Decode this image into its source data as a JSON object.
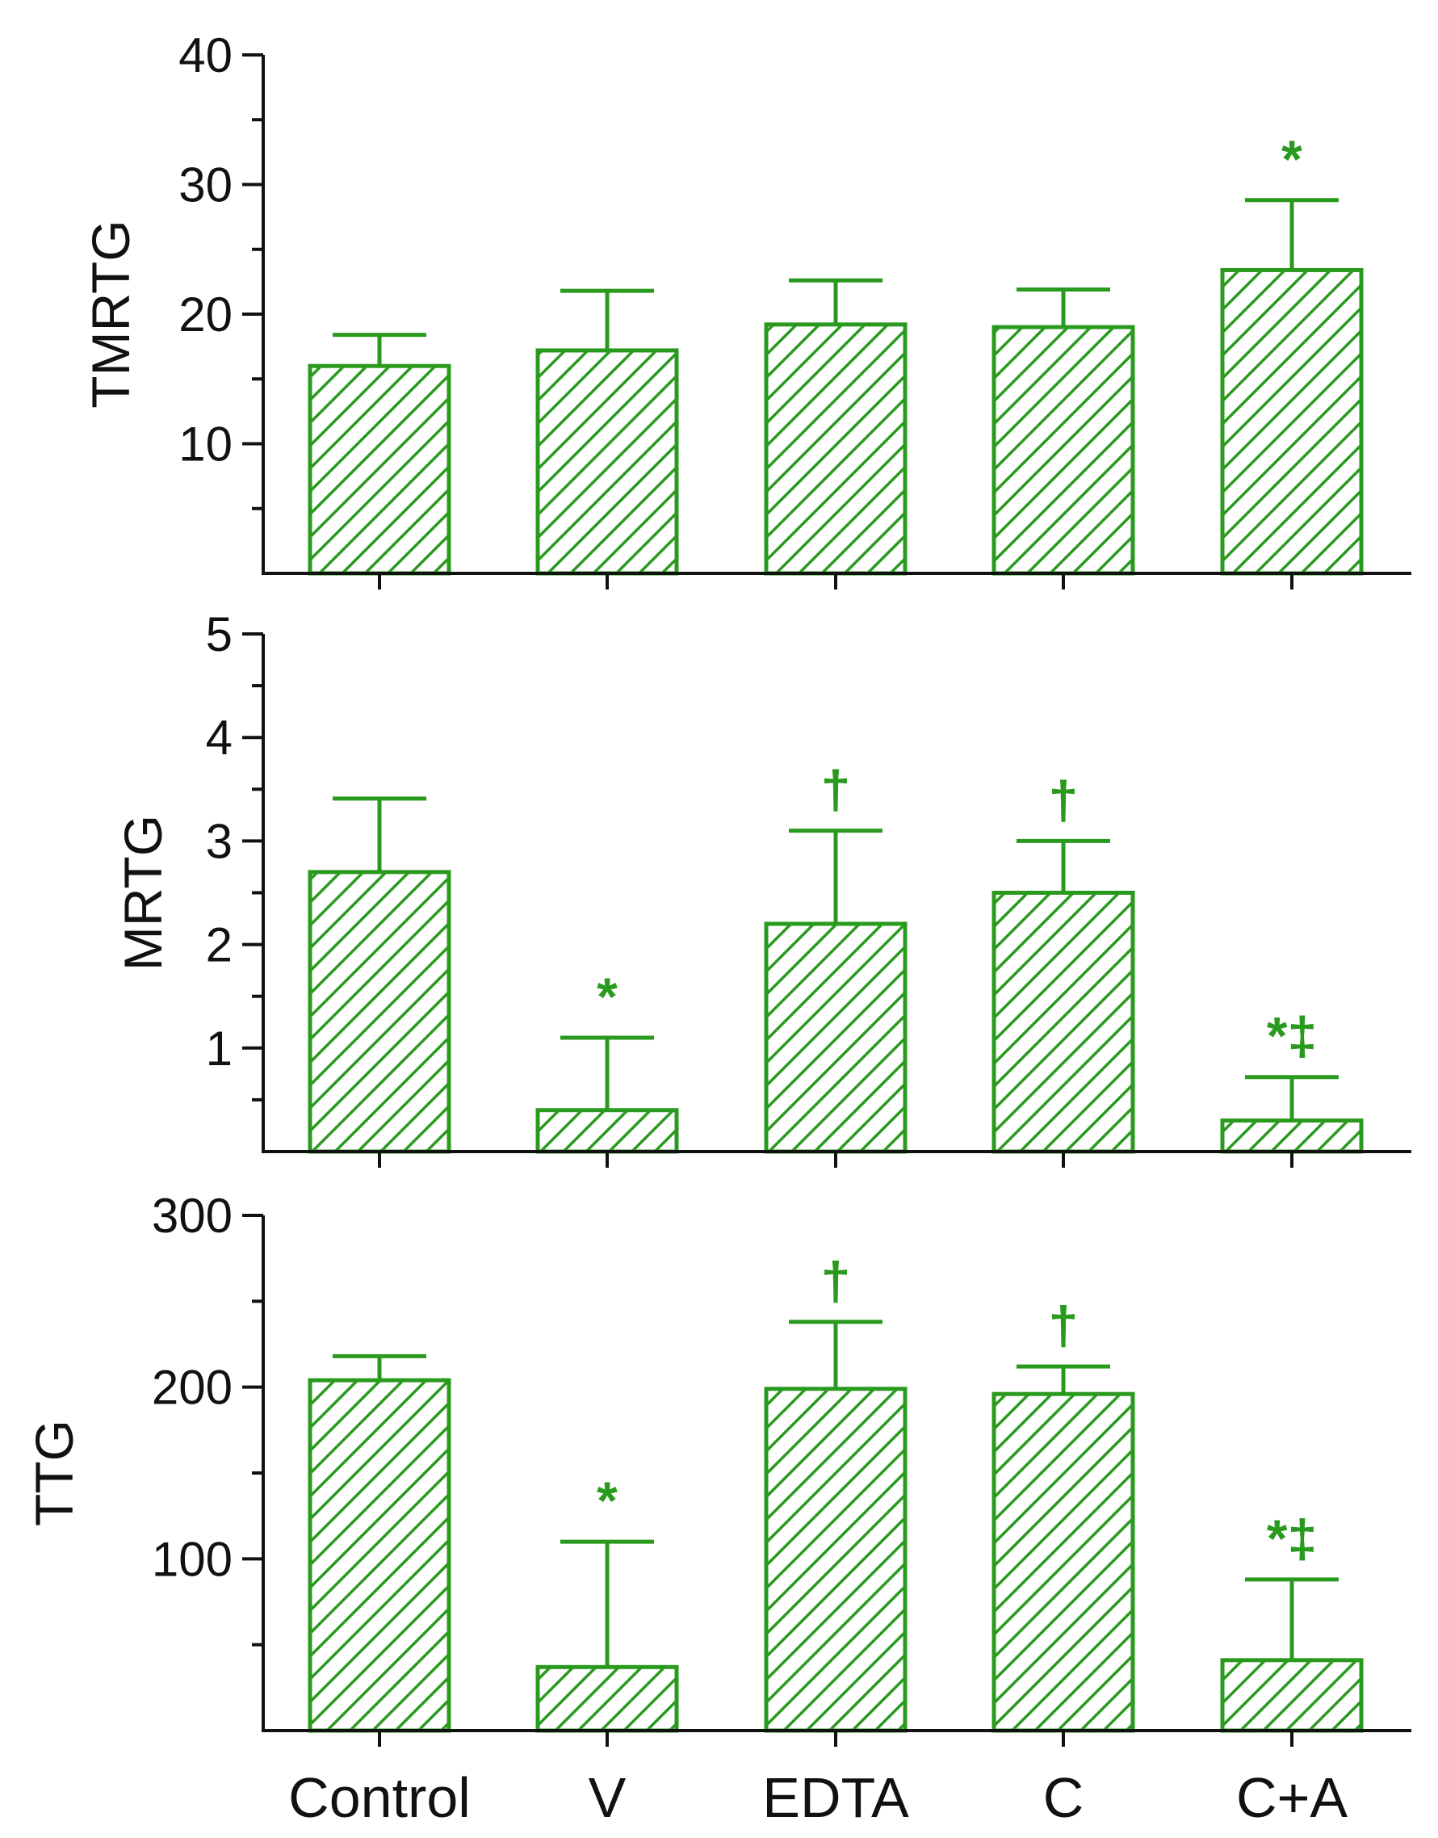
{
  "chart_data": {
    "type": "bar",
    "layout": "three vertically stacked panels sharing x categories",
    "categories": [
      "Control",
      "V",
      "EDTA",
      "C",
      "C+A"
    ],
    "bar_style": "green diagonal hatched bars with upper error bars",
    "colors": {
      "bar": "#2a9a1e",
      "text": "#111111",
      "axis": "#111111",
      "background": "#ffffff"
    },
    "panels": [
      {
        "id": "tmrtg",
        "ylabel": "TMRTG",
        "ylim": [
          0,
          40
        ],
        "yticks": [
          10,
          20,
          30,
          40
        ],
        "ytick_labels": [
          "10",
          "20",
          "30",
          "40"
        ],
        "values": [
          16.0,
          17.2,
          19.2,
          19.0,
          23.4
        ],
        "errors": [
          2.4,
          4.6,
          3.4,
          2.9,
          5.4
        ],
        "annotations": [
          "",
          "",
          "",
          "",
          "*"
        ]
      },
      {
        "id": "mrtg",
        "ylabel": "MRTG",
        "ylim": [
          0,
          5
        ],
        "yticks": [
          1,
          2,
          3,
          4,
          5
        ],
        "ytick_labels": [
          "1",
          "2",
          "3",
          "4",
          "5"
        ],
        "values": [
          2.7,
          0.4,
          2.2,
          2.5,
          0.3
        ],
        "errors": [
          0.71,
          0.7,
          0.9,
          0.5,
          0.42
        ],
        "annotations": [
          "",
          "*",
          "†",
          "†",
          "*‡"
        ]
      },
      {
        "id": "ttg",
        "ylabel": "TTG",
        "ylim": [
          0,
          300
        ],
        "yticks": [
          100,
          200,
          300
        ],
        "ytick_labels": [
          "100",
          "200",
          "300"
        ],
        "values": [
          204,
          37,
          199,
          196,
          41
        ],
        "errors": [
          14,
          73,
          39,
          16,
          47
        ],
        "annotations": [
          "",
          "*",
          "†",
          "†",
          "*‡"
        ]
      }
    ]
  }
}
